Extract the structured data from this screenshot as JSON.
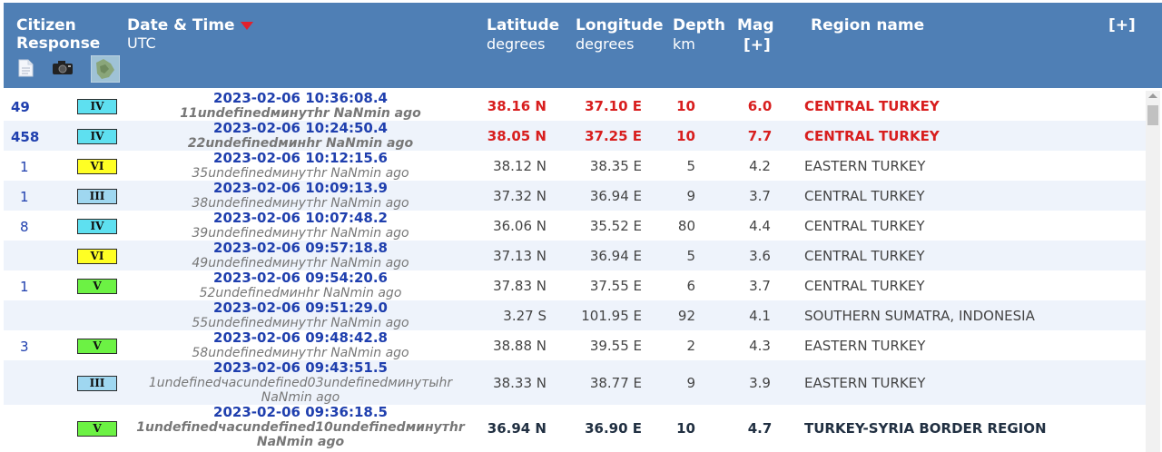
{
  "header": {
    "citizen_line1": "Citizen",
    "citizen_line2": "Response",
    "date_label": "Date & Time",
    "date_sub": "UTC",
    "lat_label": "Latitude",
    "lat_sub": "degrees",
    "lon_label": "Longitude",
    "lon_sub": "degrees",
    "depth_label": "Depth",
    "depth_sub": "km",
    "mag_label": "Mag",
    "mag_sub": "[+]",
    "region_label": "Region name",
    "expand_label": "[+]",
    "icons": [
      "document-icon",
      "camera-icon",
      "map-icon"
    ]
  },
  "colors": {
    "header_bg": "#4f7fb5",
    "alt_row": "#eef3fb",
    "link_blue": "#1f3fae",
    "alert_red": "#d81e1e",
    "intensity_IV": "#5ee0f0",
    "intensity_VI": "#ffff24",
    "intensity_III": "#9fd7f0",
    "intensity_V": "#6cf244"
  },
  "rows": [
    {
      "responses": "49",
      "intensity": "IV",
      "datetime": "2023-02-06   10:36:08.4",
      "ago": "11undefinedминутhr NaNmin ago",
      "lat": "38.16 N",
      "lon": "37.10  E",
      "depth": "10",
      "mag": "6.0",
      "region": "CENTRAL TURKEY"
    },
    {
      "responses": "458",
      "intensity": "IV",
      "datetime": "2023-02-06   10:24:50.4",
      "ago": "22undefinedминhr NaNmin ago",
      "lat": "38.05 N",
      "lon": "37.25  E",
      "depth": "10",
      "mag": "7.7",
      "region": "CENTRAL TURKEY"
    },
    {
      "responses": "1",
      "intensity": "VI",
      "datetime": "2023-02-06   10:12:15.6",
      "ago": "35undefinedминутhr NaNmin ago",
      "lat": "38.12 N",
      "lon": "38.35  E",
      "depth": "5",
      "mag": "4.2",
      "region": "EASTERN TURKEY"
    },
    {
      "responses": "1",
      "intensity": "III",
      "datetime": "2023-02-06   10:09:13.9",
      "ago": "38undefinedминутhr NaNmin ago",
      "lat": "37.32 N",
      "lon": "36.94  E",
      "depth": "9",
      "mag": "3.7",
      "region": "CENTRAL TURKEY"
    },
    {
      "responses": "8",
      "intensity": "IV",
      "datetime": "2023-02-06   10:07:48.2",
      "ago": "39undefinedминутhr NaNmin ago",
      "lat": "36.06 N",
      "lon": "35.52  E",
      "depth": "80",
      "mag": "4.4",
      "region": "CENTRAL TURKEY"
    },
    {
      "responses": "",
      "intensity": "VI",
      "datetime": "2023-02-06   09:57:18.8",
      "ago": "49undefinedминутhr NaNmin ago",
      "lat": "37.13 N",
      "lon": "36.94  E",
      "depth": "5",
      "mag": "3.6",
      "region": "CENTRAL TURKEY"
    },
    {
      "responses": "1",
      "intensity": "V",
      "datetime": "2023-02-06   09:54:20.6",
      "ago": "52undefinedминhr NaNmin ago",
      "lat": "37.83 N",
      "lon": "37.55  E",
      "depth": "6",
      "mag": "3.7",
      "region": "CENTRAL TURKEY"
    },
    {
      "responses": "",
      "intensity": "",
      "datetime": "2023-02-06   09:51:29.0",
      "ago": "55undefinedминутhr NaNmin ago",
      "lat": "3.27 S",
      "lon": "101.95  E",
      "depth": "92",
      "mag": "4.1",
      "region": "SOUTHERN SUMATRA, INDONESIA"
    },
    {
      "responses": "3",
      "intensity": "V",
      "datetime": "2023-02-06   09:48:42.8",
      "ago": "58undefinedминутhr NaNmin ago",
      "lat": "38.88 N",
      "lon": "39.55  E",
      "depth": "2",
      "mag": "4.3",
      "region": "EASTERN TURKEY"
    },
    {
      "responses": "",
      "intensity": "III",
      "datetime": "2023-02-06   09:43:51.5",
      "ago": "1undefinedчacundefined03undefinedминутыhr NaNmin ago",
      "lat": "38.33 N",
      "lon": "38.77  E",
      "depth": "9",
      "mag": "3.9",
      "region": "EASTERN TURKEY"
    },
    {
      "responses": "",
      "intensity": "V",
      "datetime": "2023-02-06   09:36:18.5",
      "ago": "1undefinedчacundefined10undefinedминутhr NaNmin ago",
      "lat": "36.94 N",
      "lon": "36.90  E",
      "depth": "10",
      "mag": "4.7",
      "region": "TURKEY-SYRIA BORDER REGION"
    }
  ]
}
